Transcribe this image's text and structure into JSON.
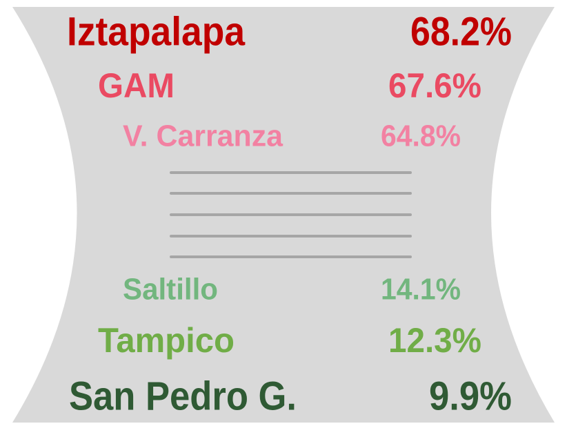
{
  "rows": [
    {
      "name": "Iztapalapa",
      "value": "68.2%",
      "color": "#c00000"
    },
    {
      "name": "GAM",
      "value": "67.6%",
      "color": "#ea4a62"
    },
    {
      "name": "V. Carranza",
      "value": "64.8%",
      "color": "#f281a2"
    },
    {
      "name": "Saltillo",
      "value": "14.1%",
      "color": "#72b67e"
    },
    {
      "name": "Tampico",
      "value": "12.3%",
      "color": "#70ad47"
    },
    {
      "name": "San Pedro G.",
      "value": "9.9%",
      "color": "#2f5a34"
    }
  ]
}
